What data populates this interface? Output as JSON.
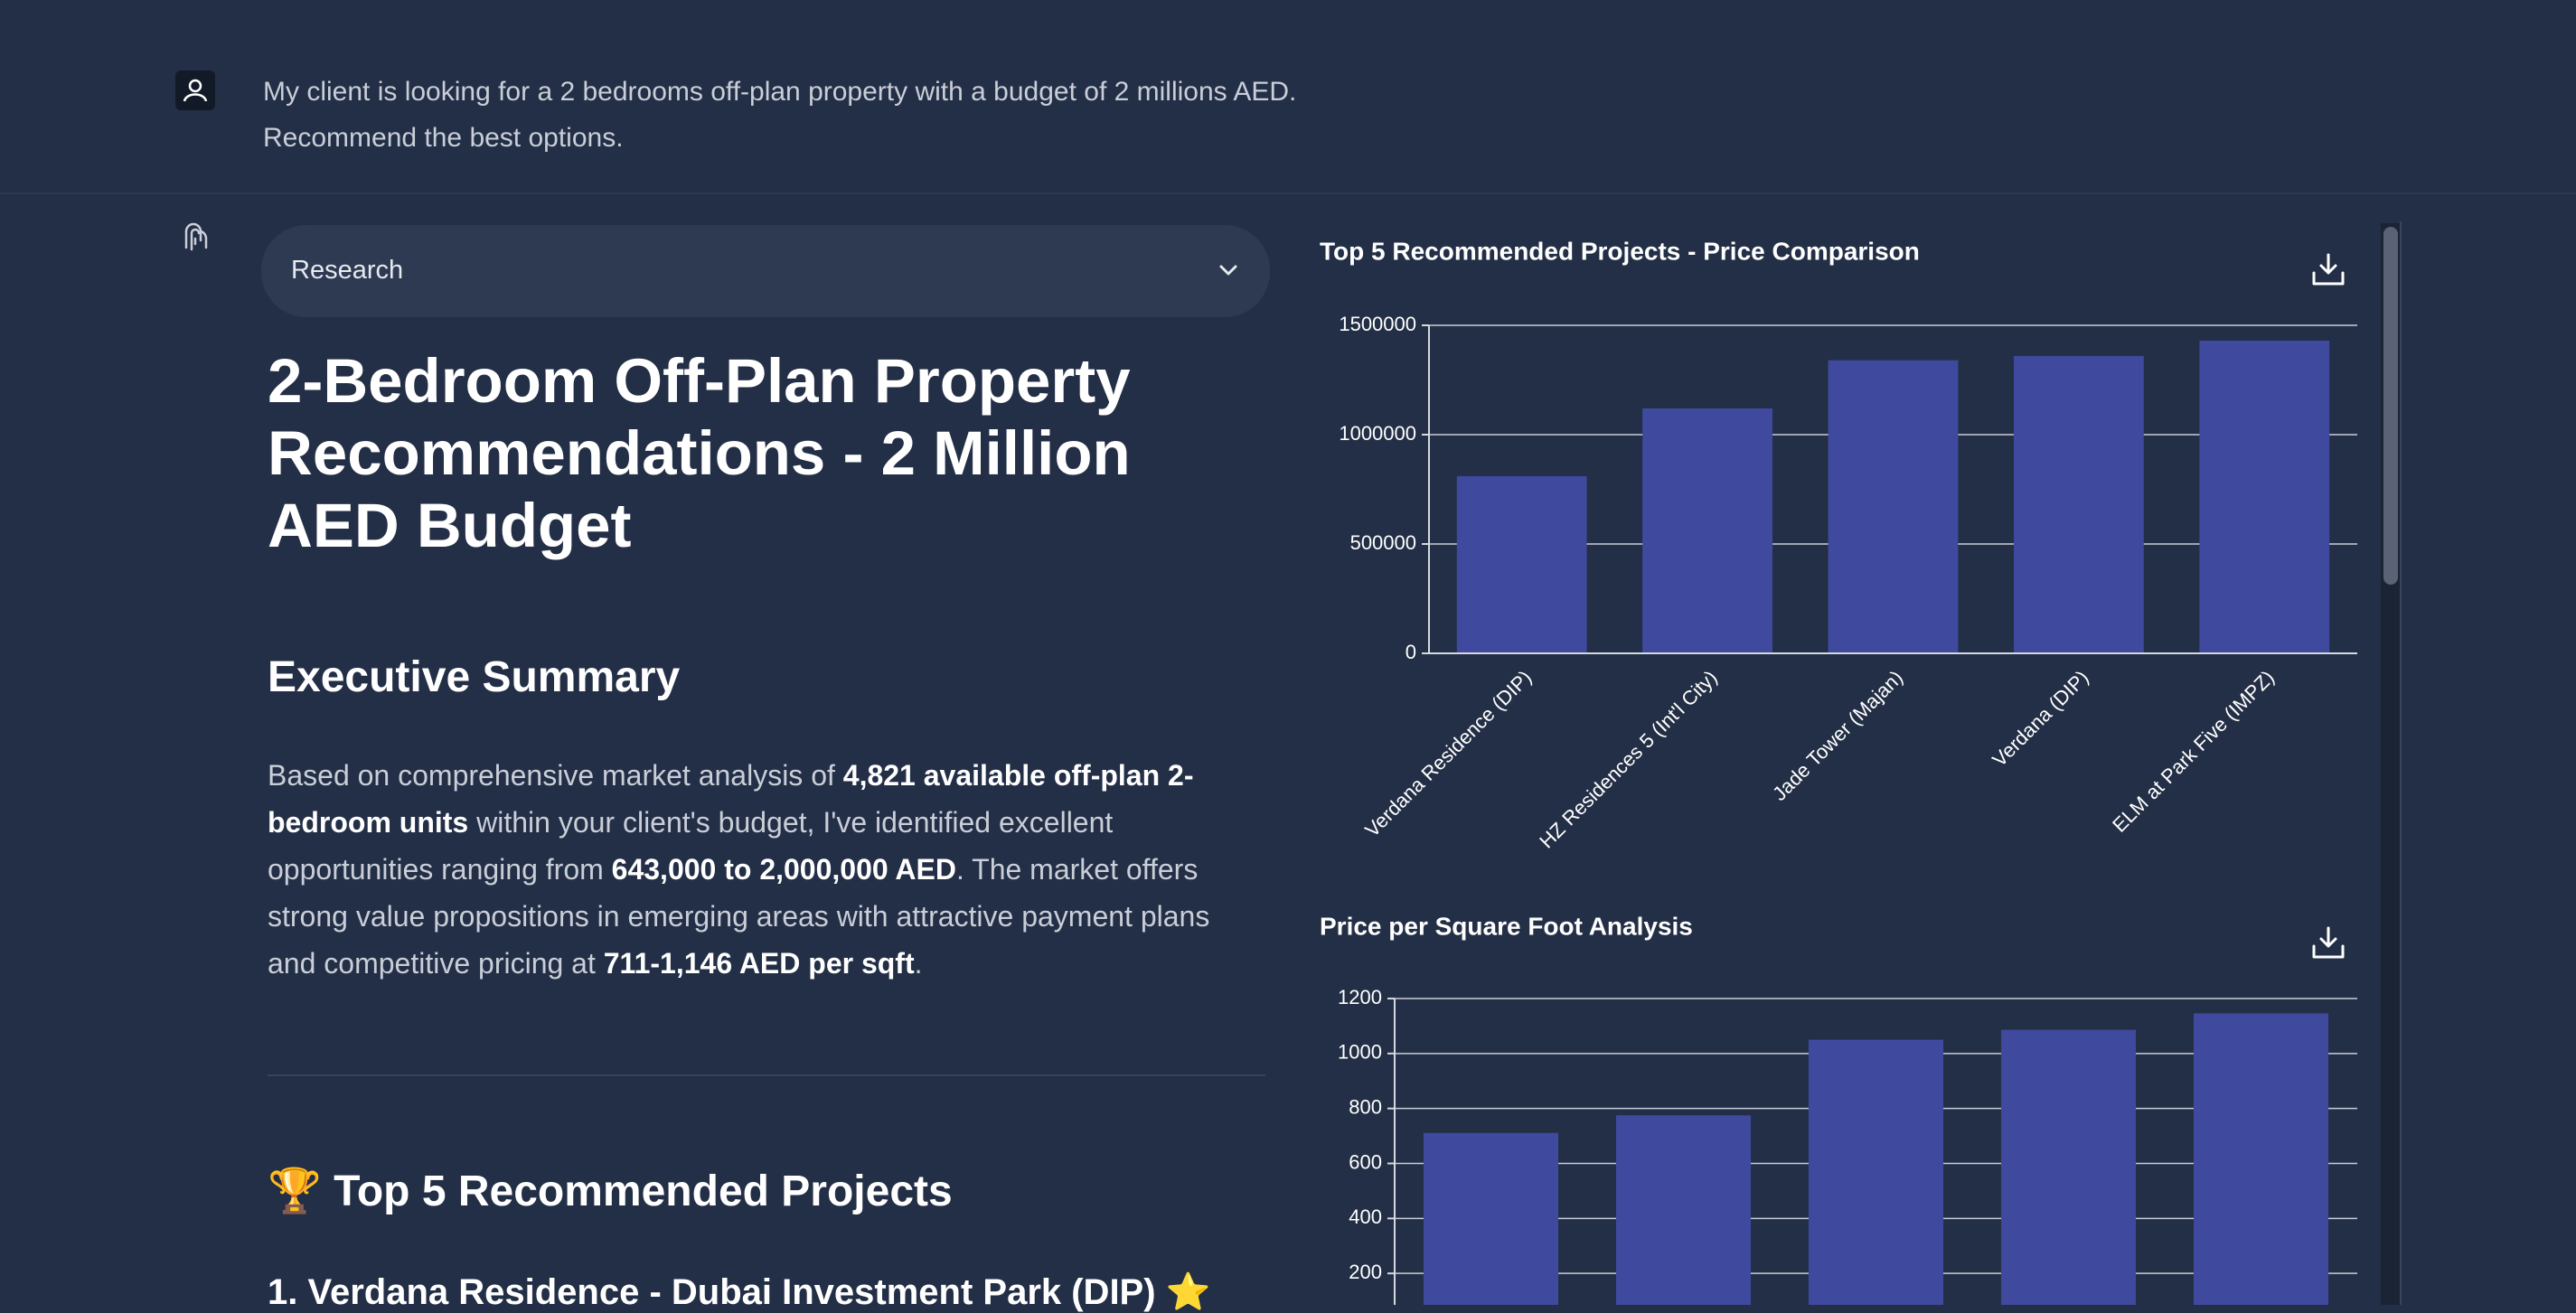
{
  "message": "My client is looking for a 2 bedrooms off-plan property with a budget of 2 millions AED. Recommend the best options.",
  "research_label": "Research",
  "title": "2-Bedroom Off-Plan Property Recommendations - 2 Million AED Budget",
  "summary_heading": "Executive Summary",
  "summary": [
    "Based on comprehensive market analysis of ",
    "4,821 available off-plan 2-bedroom units",
    " within your client's budget, I've identified excellent opportunities ranging from ",
    "643,000 to 2,000,000 AED",
    ". The market offers strong value propositions in emerging areas with attractive payment plans and competitive pricing at ",
    "711-1,146 AED per sqft",
    "."
  ],
  "projects_heading": "🏆 Top 5 Recommended Projects",
  "project_1": "1. Verdana Residence - Dubai Investment Park (DIP) ⭐",
  "chart_data": [
    {
      "type": "bar",
      "title": "Top 5 Recommended Projects - Price Comparison",
      "categories": [
        "Verdana Residence (DIP)",
        "HZ Residences 5 (Int'l City)",
        "Jade Tower (Majan)",
        "Verdana (DIP)",
        "ELM at Park Five (IMPZ)"
      ],
      "values": [
        810000,
        1120000,
        1340000,
        1360000,
        1430000
      ],
      "color": "#3f4a9f",
      "ylim": [
        0,
        1500000
      ],
      "yticks": [
        0,
        500000,
        1000000,
        1500000
      ],
      "grid": true
    },
    {
      "type": "bar",
      "title": "Price per Square Foot Analysis",
      "values": [
        711,
        775,
        1050,
        1086,
        1146
      ],
      "color": "#3f4a9f",
      "ylim": [
        0,
        1200
      ],
      "yticks": [
        200,
        400,
        600,
        800,
        1000,
        1200
      ],
      "grid": true
    }
  ]
}
